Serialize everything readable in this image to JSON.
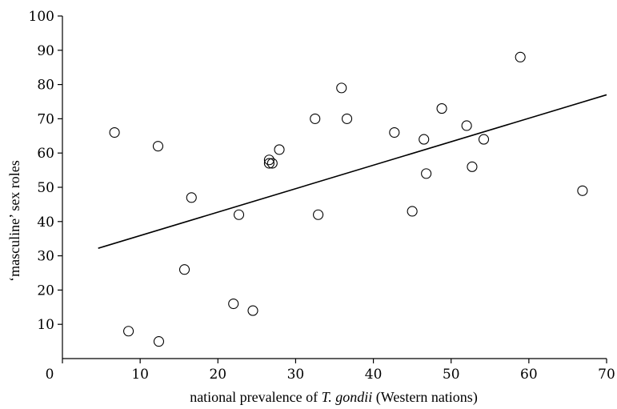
{
  "chart_data": {
    "type": "scatter",
    "title": "",
    "xlabel_prefix": "national prevalence of ",
    "xlabel_italic": "T. gondii",
    "xlabel_suffix": " (Western nations)",
    "ylabel": "‘masculine’ sex roles",
    "xlim": [
      0,
      70
    ],
    "ylim": [
      0,
      100
    ],
    "xticks": [
      0,
      10,
      20,
      30,
      40,
      50,
      60,
      70
    ],
    "yticks": [
      10,
      20,
      30,
      40,
      50,
      60,
      70,
      80,
      90,
      100
    ],
    "grid": false,
    "points": [
      {
        "x": 6.7,
        "y": 66
      },
      {
        "x": 8.5,
        "y": 8
      },
      {
        "x": 12.3,
        "y": 62
      },
      {
        "x": 12.4,
        "y": 5
      },
      {
        "x": 15.7,
        "y": 26
      },
      {
        "x": 16.6,
        "y": 47
      },
      {
        "x": 22.0,
        "y": 16
      },
      {
        "x": 22.7,
        "y": 42
      },
      {
        "x": 24.5,
        "y": 14
      },
      {
        "x": 26.6,
        "y": 58
      },
      {
        "x": 26.6,
        "y": 57
      },
      {
        "x": 27.0,
        "y": 57
      },
      {
        "x": 27.9,
        "y": 61
      },
      {
        "x": 32.5,
        "y": 70
      },
      {
        "x": 32.9,
        "y": 42
      },
      {
        "x": 35.9,
        "y": 79
      },
      {
        "x": 36.6,
        "y": 70
      },
      {
        "x": 42.7,
        "y": 66
      },
      {
        "x": 45.0,
        "y": 43
      },
      {
        "x": 46.5,
        "y": 64
      },
      {
        "x": 46.8,
        "y": 54
      },
      {
        "x": 48.8,
        "y": 73
      },
      {
        "x": 52.0,
        "y": 68
      },
      {
        "x": 52.7,
        "y": 56
      },
      {
        "x": 54.2,
        "y": 64
      },
      {
        "x": 58.9,
        "y": 88
      },
      {
        "x": 66.9,
        "y": 49
      }
    ],
    "trendline": {
      "x": [
        4.6,
        70
      ],
      "y": [
        32.2,
        77
      ]
    }
  }
}
